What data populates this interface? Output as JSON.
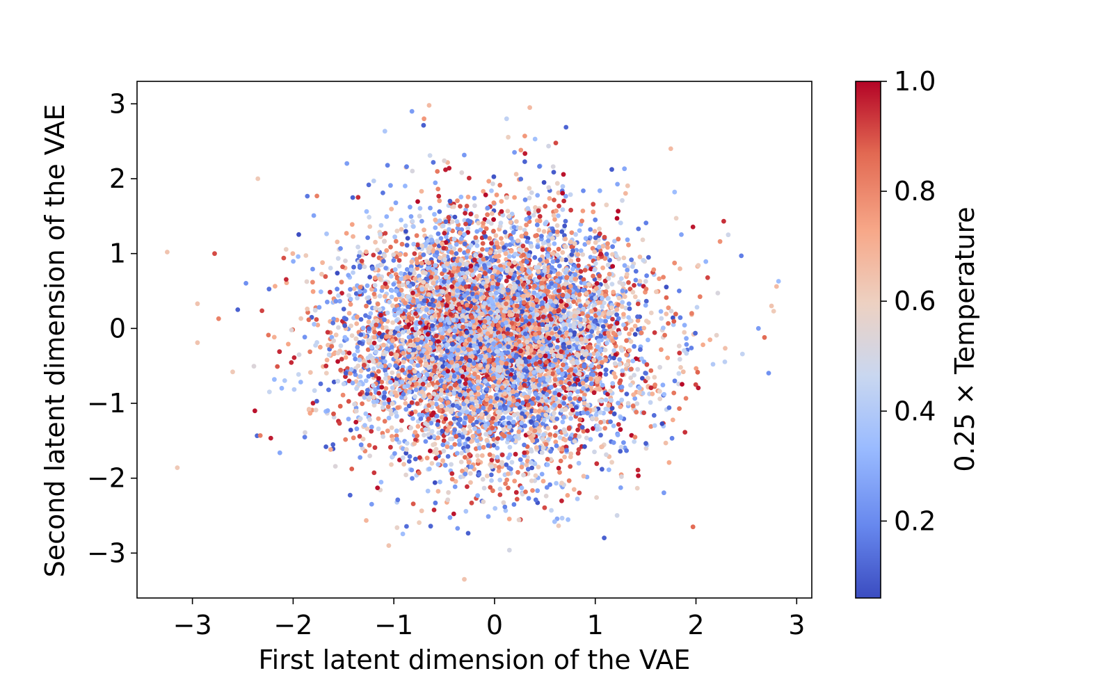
{
  "chart_data": {
    "type": "scatter",
    "xlabel": "First latent dimension of the VAE",
    "ylabel": "Second latent dimension of the VAE",
    "xlim": [
      -3.55,
      3.15
    ],
    "ylim": [
      -3.6,
      3.3
    ],
    "xticks": [
      -3,
      -2,
      -1,
      0,
      1,
      2,
      3
    ],
    "yticks": [
      -3,
      -2,
      -1,
      0,
      1,
      2,
      3
    ],
    "xtick_labels": [
      "−3",
      "−2",
      "−1",
      "0",
      "1",
      "2",
      "3"
    ],
    "ytick_labels": [
      "−3",
      "−2",
      "−1",
      "0",
      "1",
      "2",
      "3"
    ],
    "grid": false,
    "points_shown": "approx. 10,000 points, roughly standard-normal in both dimensions, colors uniformly mixed",
    "outliers": [
      {
        "x": -3.25,
        "y": 1.02,
        "c": 0.62
      },
      {
        "x": -3.15,
        "y": -1.86,
        "c": 0.6
      },
      {
        "x": -2.95,
        "y": 0.33,
        "c": 0.62
      },
      {
        "x": -2.95,
        "y": -0.19,
        "c": 0.62
      },
      {
        "x": -2.78,
        "y": 1.0,
        "c": 0.9
      },
      {
        "x": -2.74,
        "y": 0.13,
        "c": 0.8
      },
      {
        "x": -2.6,
        "y": -0.58,
        "c": 0.6
      },
      {
        "x": -2.55,
        "y": 0.25,
        "c": 0.05
      },
      {
        "x": -2.35,
        "y": 2.0,
        "c": 0.6
      },
      {
        "x": -2.38,
        "y": -1.1,
        "c": 0.98
      },
      {
        "x": -0.65,
        "y": 2.98,
        "c": 0.65
      },
      {
        "x": -0.82,
        "y": 2.9,
        "c": 0.2
      },
      {
        "x": -0.7,
        "y": 2.8,
        "c": 0.75
      },
      {
        "x": 0.12,
        "y": 2.8,
        "c": 0.4
      },
      {
        "x": 0.35,
        "y": 2.95,
        "c": 0.65
      },
      {
        "x": 0.3,
        "y": 2.57,
        "c": 0.75
      },
      {
        "x": 1.75,
        "y": 2.4,
        "c": 0.65
      },
      {
        "x": 2.45,
        "y": 0.97,
        "c": 0.12
      },
      {
        "x": 2.82,
        "y": 0.63,
        "c": 0.3
      },
      {
        "x": 2.8,
        "y": 0.56,
        "c": 0.65
      },
      {
        "x": 2.62,
        "y": 0.0,
        "c": 0.2
      },
      {
        "x": 2.68,
        "y": -0.12,
        "c": 0.85
      },
      {
        "x": 2.75,
        "y": 0.3,
        "c": 0.62
      },
      {
        "x": -1.05,
        "y": -2.9,
        "c": 0.62
      },
      {
        "x": -0.3,
        "y": -3.35,
        "c": 0.62
      },
      {
        "x": 1.97,
        "y": -2.65,
        "c": 0.85
      }
    ],
    "colorbar": {
      "label": "0.25 × Temperature",
      "colormap": "coolwarm",
      "range": [
        0.06,
        1.0
      ],
      "ticks": [
        0.2,
        0.4,
        0.6,
        0.8,
        1.0
      ],
      "tick_labels": [
        "0.2",
        "0.4",
        "0.6",
        "0.8",
        "1.0"
      ],
      "stops": [
        "#3b4cc0",
        "#6788ee",
        "#9abbff",
        "#c9d7f0",
        "#edd1c2",
        "#f7a889",
        "#e26952",
        "#b40426"
      ]
    }
  }
}
